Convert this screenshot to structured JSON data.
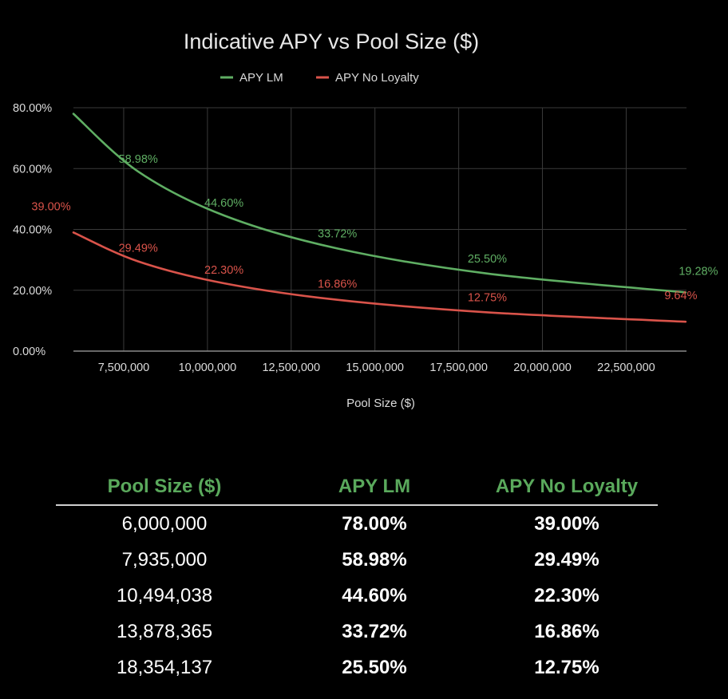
{
  "colors": {
    "apy_lm": "#5fae63",
    "apy_no_loyalty": "#d9534a",
    "header": "#5aa95c",
    "grid": "#3a3a3a"
  },
  "chart_data": {
    "type": "line",
    "title": "Indicative APY vs Pool Size ($)",
    "xlabel": "Pool Size ($)",
    "ylabel": "",
    "xlim": [
      6000000,
      24300000
    ],
    "ylim": [
      0,
      80
    ],
    "x_ticks": [
      7500000,
      10000000,
      12500000,
      15000000,
      17500000,
      20000000,
      22500000
    ],
    "x_tick_labels": [
      "7,500,000",
      "10,000,000",
      "12,500,000",
      "15,000,000",
      "17,500,000",
      "20,000,000",
      "22,500,000"
    ],
    "y_ticks": [
      0,
      20,
      40,
      60,
      80
    ],
    "y_tick_labels": [
      "0.00%",
      "20.00%",
      "40.00%",
      "60.00%",
      "80.00%"
    ],
    "grid": true,
    "legend_position": "top-center",
    "series": [
      {
        "name": "APY LM",
        "color": "#5fae63",
        "x": [
          6000000,
          7935000,
          10494038,
          13878365,
          18354137,
          24274000
        ],
        "values": [
          78.0,
          58.98,
          44.6,
          33.72,
          25.5,
          19.28
        ],
        "labels": [
          "",
          "58.98%",
          "44.60%",
          "33.72%",
          "25.50%",
          "19.28%"
        ]
      },
      {
        "name": "APY No Loyalty",
        "color": "#d9534a",
        "x": [
          6000000,
          7935000,
          10494038,
          13878365,
          18354137,
          24274000
        ],
        "values": [
          39.0,
          29.49,
          22.3,
          16.86,
          12.75,
          9.64
        ],
        "labels": [
          "39.00%",
          "29.49%",
          "22.30%",
          "16.86%",
          "12.75%",
          "9.64%"
        ]
      }
    ]
  },
  "table": {
    "headers": [
      "Pool Size ($)",
      "APY LM",
      "APY No Loyalty"
    ],
    "rows": [
      [
        "6,000,000",
        "78.00%",
        "39.00%"
      ],
      [
        "7,935,000",
        "58.98%",
        "29.49%"
      ],
      [
        "10,494,038",
        "44.60%",
        "22.30%"
      ],
      [
        "13,878,365",
        "33.72%",
        "16.86%"
      ],
      [
        "18,354,137",
        "25.50%",
        "12.75%"
      ]
    ]
  }
}
